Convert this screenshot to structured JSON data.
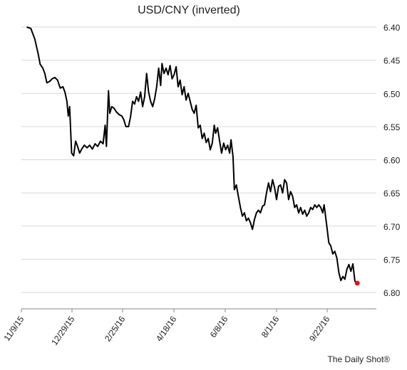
{
  "chart_data": {
    "type": "line",
    "title": "USD/CNY (inverted)",
    "source": "The Daily Shot®",
    "y_axis": {
      "side": "right",
      "inverted": true,
      "min": 6.4,
      "max": 6.8,
      "ticks": [
        "6.40",
        "6.45",
        "6.50",
        "6.55",
        "6.60",
        "6.65",
        "6.70",
        "6.75",
        "6.80"
      ]
    },
    "x_axis": {
      "tick_labels": [
        "11/9/15",
        "12/29/15",
        "2/25/16",
        "4/18/16",
        "6/8/16",
        "8/1/16",
        "9/22/16"
      ]
    },
    "grid": "horizontal",
    "series": [
      {
        "color": "#000000",
        "points": [
          [
            0.8,
            6.4
          ],
          [
            1.4,
            6.402
          ],
          [
            2.0,
            6.418
          ],
          [
            2.5,
            6.44
          ],
          [
            2.8,
            6.456
          ],
          [
            3.2,
            6.462
          ],
          [
            3.5,
            6.47
          ],
          [
            3.8,
            6.484
          ],
          [
            4.2,
            6.482
          ],
          [
            4.6,
            6.478
          ],
          [
            5.0,
            6.476
          ],
          [
            5.4,
            6.48
          ],
          [
            5.8,
            6.492
          ],
          [
            6.2,
            6.49
          ],
          [
            6.5,
            6.498
          ],
          [
            6.8,
            6.512
          ],
          [
            7.0,
            6.534
          ],
          [
            7.2,
            6.52
          ],
          [
            7.5,
            6.59
          ],
          [
            7.8,
            6.594
          ],
          [
            8.1,
            6.572
          ],
          [
            8.4,
            6.58
          ],
          [
            8.7,
            6.59
          ],
          [
            9.0,
            6.584
          ],
          [
            9.4,
            6.578
          ],
          [
            9.8,
            6.582
          ],
          [
            10.2,
            6.578
          ],
          [
            10.6,
            6.584
          ],
          [
            11.0,
            6.576
          ],
          [
            11.4,
            6.58
          ],
          [
            11.8,
            6.572
          ],
          [
            12.2,
            6.576
          ],
          [
            12.5,
            6.548
          ],
          [
            12.7,
            6.58
          ],
          [
            13.0,
            6.496
          ],
          [
            13.2,
            6.53
          ],
          [
            13.5,
            6.52
          ],
          [
            13.8,
            6.522
          ],
          [
            14.2,
            6.528
          ],
          [
            14.6,
            6.532
          ],
          [
            15.0,
            6.534
          ],
          [
            15.3,
            6.54
          ],
          [
            15.6,
            6.55
          ],
          [
            16.0,
            6.55
          ],
          [
            16.3,
            6.535
          ],
          [
            16.6,
            6.512
          ],
          [
            16.9,
            6.516
          ],
          [
            17.2,
            6.505
          ],
          [
            17.5,
            6.512
          ],
          [
            17.8,
            6.498
          ],
          [
            18.1,
            6.52
          ],
          [
            18.4,
            6.505
          ],
          [
            18.7,
            6.47
          ],
          [
            19.0,
            6.498
          ],
          [
            19.3,
            6.512
          ],
          [
            19.6,
            6.52
          ],
          [
            19.9,
            6.508
          ],
          [
            20.2,
            6.49
          ],
          [
            20.5,
            6.462
          ],
          [
            20.8,
            6.488
          ],
          [
            21.0,
            6.455
          ],
          [
            21.3,
            6.47
          ],
          [
            21.6,
            6.462
          ],
          [
            21.9,
            6.472
          ],
          [
            22.2,
            6.458
          ],
          [
            22.5,
            6.478
          ],
          [
            22.8,
            6.472
          ],
          [
            23.1,
            6.46
          ],
          [
            23.4,
            6.49
          ],
          [
            23.7,
            6.48
          ],
          [
            24.0,
            6.502
          ],
          [
            24.3,
            6.49
          ],
          [
            24.6,
            6.51
          ],
          [
            24.9,
            6.5
          ],
          [
            25.2,
            6.512
          ],
          [
            25.5,
            6.524
          ],
          [
            25.8,
            6.53
          ],
          [
            26.1,
            6.518
          ],
          [
            26.4,
            6.552
          ],
          [
            26.7,
            6.548
          ],
          [
            27.0,
            6.568
          ],
          [
            27.3,
            6.56
          ],
          [
            27.6,
            6.574
          ],
          [
            27.9,
            6.568
          ],
          [
            28.2,
            6.585
          ],
          [
            28.5,
            6.575
          ],
          [
            28.8,
            6.548
          ],
          [
            29.0,
            6.56
          ],
          [
            29.3,
            6.552
          ],
          [
            29.6,
            6.572
          ],
          [
            29.9,
            6.59
          ],
          [
            30.2,
            6.575
          ],
          [
            30.5,
            6.585
          ],
          [
            30.8,
            6.578
          ],
          [
            31.1,
            6.59
          ],
          [
            31.3,
            6.57
          ],
          [
            31.6,
            6.595
          ],
          [
            31.8,
            6.645
          ],
          [
            32.1,
            6.638
          ],
          [
            32.4,
            6.655
          ],
          [
            32.7,
            6.672
          ],
          [
            33.0,
            6.685
          ],
          [
            33.3,
            6.68
          ],
          [
            33.6,
            6.692
          ],
          [
            33.9,
            6.688
          ],
          [
            34.2,
            6.695
          ],
          [
            34.5,
            6.705
          ],
          [
            34.8,
            6.69
          ],
          [
            35.1,
            6.68
          ],
          [
            35.4,
            6.676
          ],
          [
            35.7,
            6.68
          ],
          [
            36.0,
            6.67
          ],
          [
            36.3,
            6.668
          ],
          [
            36.6,
            6.65
          ],
          [
            36.9,
            6.635
          ],
          [
            37.2,
            6.648
          ],
          [
            37.5,
            6.63
          ],
          [
            37.8,
            6.642
          ],
          [
            38.1,
            6.66
          ],
          [
            38.4,
            6.64
          ],
          [
            38.7,
            6.638
          ],
          [
            39.0,
            6.65
          ],
          [
            39.3,
            6.63
          ],
          [
            39.6,
            6.635
          ],
          [
            39.9,
            6.66
          ],
          [
            40.2,
            6.648
          ],
          [
            40.5,
            6.655
          ],
          [
            40.8,
            6.672
          ],
          [
            41.1,
            6.668
          ],
          [
            41.4,
            6.68
          ],
          [
            41.7,
            6.672
          ],
          [
            42.0,
            6.682
          ],
          [
            42.3,
            6.676
          ],
          [
            42.6,
            6.685
          ],
          [
            42.9,
            6.68
          ],
          [
            43.2,
            6.672
          ],
          [
            43.5,
            6.675
          ],
          [
            43.8,
            6.668
          ],
          [
            44.1,
            6.672
          ],
          [
            44.4,
            6.668
          ],
          [
            44.7,
            6.672
          ],
          [
            45.0,
            6.68
          ],
          [
            45.2,
            6.668
          ],
          [
            45.6,
            6.7
          ],
          [
            45.9,
            6.725
          ],
          [
            46.2,
            6.73
          ],
          [
            46.5,
            6.742
          ],
          [
            46.8,
            6.738
          ],
          [
            47.1,
            6.748
          ],
          [
            47.4,
            6.77
          ],
          [
            47.7,
            6.782
          ],
          [
            48.0,
            6.776
          ],
          [
            48.3,
            6.78
          ],
          [
            48.6,
            6.765
          ],
          [
            48.9,
            6.758
          ],
          [
            49.2,
            6.768
          ],
          [
            49.5,
            6.757
          ],
          [
            49.8,
            6.783
          ],
          [
            50.1,
            6.786
          ]
        ]
      }
    ],
    "end_marker": {
      "color": "#e8141b",
      "value": 6.786
    }
  }
}
